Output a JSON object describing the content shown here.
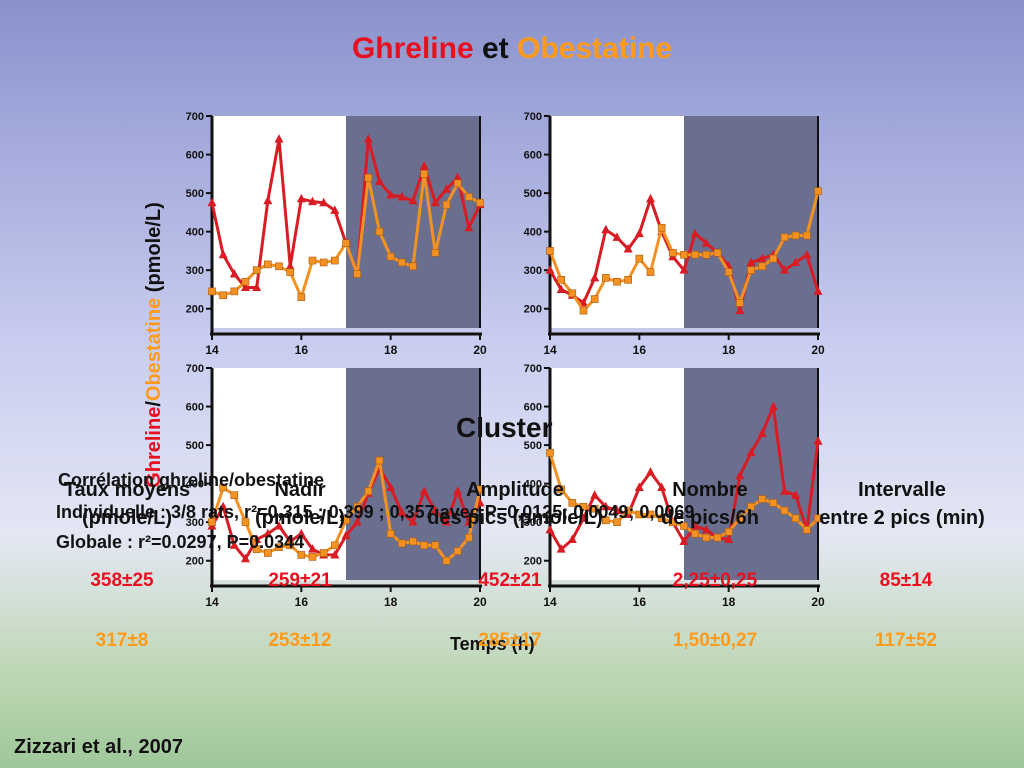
{
  "title": {
    "part1": "Ghreline",
    "part2": " et ",
    "part3": "Obestatine"
  },
  "ylabel": {
    "part1": "Ghreline",
    "sep": "/",
    "part2": "Obestatine",
    "unit": " (pmole/L)"
  },
  "xlabel": "Temps (h)",
  "cluster_label": "Cluster",
  "correlation": {
    "line1": "Corrélation ghreline/obestatine",
    "line2": "Individuelle : 3/8 rats, r²=0,315 ; 0,399 ; 0,357 avec P=0,0125; 0,0049; 0,0069",
    "line3": "Globale : r²=0.0297, P=0.0344"
  },
  "table": {
    "headers": [
      {
        "l1": "Taux moyens",
        "l2": "(pmole/L)"
      },
      {
        "l1": "Nadir",
        "l2": "(pmole/L)"
      },
      {
        "l1": "Amplitude",
        "l2": "des pics (pmole/L)"
      },
      {
        "l1": "Nombre",
        "l2": "de pics/6h"
      },
      {
        "l1": "Intervalle",
        "l2": "entre 2 pics (min)"
      }
    ],
    "ghreline_values": [
      "358±25",
      "259±21",
      "452±21",
      "2,25±0,25",
      "85±14"
    ],
    "obestatine_values": [
      "317±8",
      "253±12",
      "285±17",
      "1,50±0,27",
      "117±52"
    ]
  },
  "reference": "Zizzari et al., 2007",
  "colors": {
    "ghreline": "#d81c24",
    "obestatine": "#f39223",
    "shade": "#6b6f8f"
  },
  "chart_data": [
    {
      "type": "line",
      "panel": "top-left",
      "xlim": [
        14,
        20
      ],
      "ylim": [
        150,
        700
      ],
      "shaded_x": [
        17,
        20
      ],
      "x_ticks": [
        14,
        16,
        18,
        20
      ],
      "y_ticks": [
        200,
        300,
        400,
        500,
        600,
        700
      ],
      "series": [
        {
          "marker": "triangle",
          "x": [
            14,
            14.25,
            14.5,
            14.75,
            15,
            15.25,
            15.5,
            15.75,
            16,
            16.25,
            16.5,
            16.75,
            17,
            17.25,
            17.5,
            17.75,
            18,
            18.25,
            18.5,
            18.75,
            19,
            19.25,
            19.5,
            19.75,
            20
          ],
          "y": [
            475,
            340,
            290,
            255,
            255,
            480,
            640,
            310,
            485,
            478,
            475,
            455,
            370,
            290,
            640,
            530,
            495,
            490,
            480,
            570,
            475,
            510,
            540,
            410,
            470
          ]
        },
        {
          "marker": "square",
          "x": [
            14,
            14.25,
            14.5,
            14.75,
            15,
            15.25,
            15.5,
            15.75,
            16,
            16.25,
            16.5,
            16.75,
            17,
            17.25,
            17.5,
            17.75,
            18,
            18.25,
            18.5,
            18.75,
            19,
            19.25,
            19.5,
            19.75,
            20
          ],
          "y": [
            245,
            235,
            245,
            270,
            300,
            315,
            310,
            295,
            230,
            325,
            320,
            325,
            370,
            290,
            540,
            400,
            335,
            320,
            310,
            550,
            345,
            470,
            525,
            490,
            475
          ]
        }
      ]
    },
    {
      "type": "line",
      "panel": "top-right",
      "xlim": [
        14,
        20
      ],
      "ylim": [
        150,
        700
      ],
      "shaded_x": [
        17,
        20
      ],
      "x_ticks": [
        14,
        16,
        18,
        20
      ],
      "y_ticks": [
        200,
        300,
        400,
        500,
        600,
        700
      ],
      "series": [
        {
          "marker": "triangle",
          "x": [
            14,
            14.25,
            14.5,
            14.75,
            15,
            15.25,
            15.5,
            15.75,
            16,
            16.25,
            16.5,
            16.75,
            17,
            17.25,
            17.5,
            17.75,
            18,
            18.25,
            18.5,
            18.75,
            19,
            19.25,
            19.5,
            19.75,
            20
          ],
          "y": [
            300,
            250,
            235,
            215,
            280,
            405,
            385,
            355,
            395,
            485,
            400,
            335,
            300,
            395,
            370,
            345,
            310,
            195,
            320,
            330,
            340,
            300,
            320,
            340,
            245
          ]
        },
        {
          "marker": "square",
          "x": [
            14,
            14.25,
            14.5,
            14.75,
            15,
            15.25,
            15.5,
            15.75,
            16,
            16.25,
            16.5,
            16.75,
            17,
            17.25,
            17.5,
            17.75,
            18,
            18.25,
            18.5,
            18.75,
            19,
            19.25,
            19.5,
            19.75,
            20
          ],
          "y": [
            350,
            275,
            240,
            195,
            225,
            280,
            270,
            275,
            330,
            295,
            410,
            345,
            340,
            340,
            340,
            345,
            295,
            215,
            300,
            310,
            330,
            385,
            390,
            390,
            505
          ]
        }
      ]
    },
    {
      "type": "line",
      "panel": "bottom-left",
      "xlim": [
        14,
        20
      ],
      "ylim": [
        150,
        700
      ],
      "shaded_x": [
        17,
        20
      ],
      "x_ticks": [
        14,
        16,
        18,
        20
      ],
      "y_ticks": [
        200,
        300,
        400,
        500,
        600,
        700
      ],
      "series": [
        {
          "marker": "triangle",
          "x": [
            14,
            14.25,
            14.5,
            14.75,
            15,
            15.25,
            15.5,
            15.75,
            16,
            16.25,
            16.5,
            16.75,
            17,
            17.25,
            17.5,
            17.75,
            18,
            18.25,
            18.5,
            18.75,
            19,
            19.25,
            19.5,
            19.75,
            20
          ],
          "y": [
            290,
            340,
            240,
            205,
            255,
            270,
            290,
            250,
            270,
            230,
            215,
            215,
            265,
            300,
            375,
            440,
            390,
            325,
            300,
            380,
            330,
            300,
            380,
            300,
            350
          ]
        },
        {
          "marker": "square",
          "x": [
            14,
            14.25,
            14.5,
            14.75,
            15,
            15.25,
            15.5,
            15.75,
            16,
            16.25,
            16.5,
            16.75,
            17,
            17.25,
            17.5,
            17.75,
            18,
            18.25,
            18.5,
            18.75,
            19,
            19.25,
            19.5,
            19.75,
            20
          ],
          "y": [
            300,
            390,
            370,
            300,
            230,
            220,
            235,
            240,
            215,
            210,
            220,
            240,
            305,
            340,
            380,
            460,
            270,
            245,
            250,
            240,
            240,
            200,
            225,
            260,
            385
          ]
        }
      ]
    },
    {
      "type": "line",
      "panel": "bottom-right",
      "xlim": [
        14,
        20
      ],
      "ylim": [
        150,
        700
      ],
      "shaded_x": [
        17,
        20
      ],
      "x_ticks": [
        14,
        16,
        18,
        20
      ],
      "y_ticks": [
        200,
        300,
        400,
        500,
        600,
        700
      ],
      "series": [
        {
          "marker": "triangle",
          "x": [
            14,
            14.25,
            14.5,
            14.75,
            15,
            15.25,
            15.5,
            15.75,
            16,
            16.25,
            16.5,
            16.75,
            17,
            17.25,
            17.5,
            17.75,
            18,
            18.25,
            18.5,
            18.75,
            19,
            19.25,
            19.5,
            19.75,
            20
          ],
          "y": [
            280,
            230,
            255,
            310,
            370,
            340,
            330,
            320,
            390,
            430,
            390,
            300,
            250,
            290,
            280,
            260,
            255,
            420,
            480,
            530,
            600,
            380,
            370,
            280,
            510
          ]
        },
        {
          "marker": "square",
          "x": [
            14,
            14.25,
            14.5,
            14.75,
            15,
            15.25,
            15.5,
            15.75,
            16,
            16.25,
            16.5,
            16.75,
            17,
            17.25,
            17.5,
            17.75,
            18,
            18.25,
            18.5,
            18.75,
            19,
            19.25,
            19.5,
            19.75,
            20
          ],
          "y": [
            480,
            385,
            350,
            340,
            335,
            305,
            300,
            330,
            320,
            320,
            310,
            300,
            290,
            270,
            260,
            260,
            275,
            310,
            340,
            360,
            350,
            330,
            310,
            280,
            310
          ]
        }
      ]
    }
  ]
}
